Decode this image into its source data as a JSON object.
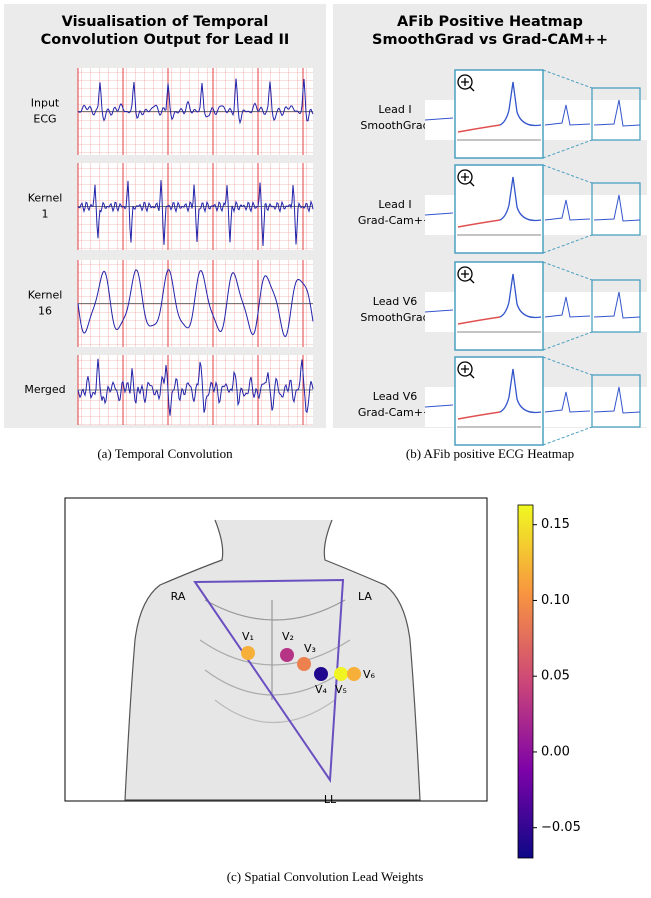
{
  "panel_a": {
    "title": [
      "Visualisation of Temporal",
      "Convolution Output for Lead II"
    ],
    "rows": [
      [
        "Input",
        "ECG"
      ],
      [
        "Kernel",
        "1"
      ],
      [
        "Kernel",
        "16"
      ],
      [
        "Merged"
      ]
    ],
    "caption": "(a) Temporal Convolution"
  },
  "panel_b": {
    "title": [
      "AFib Positive Heatmap",
      "SmoothGrad vs Grad-CAM++"
    ],
    "rows": [
      [
        "Lead I",
        "SmoothGrad"
      ],
      [
        "Lead I",
        "Grad-Cam++"
      ],
      [
        "Lead V6",
        "SmoothGrad"
      ],
      [
        "Lead V6",
        "Grad-Cam++"
      ]
    ],
    "caption": "(b) AFib positive ECG Heatmap"
  },
  "chart_data": {
    "type": "scatter",
    "caption": "(c) Spatial Convolution Lead Weights",
    "limb_labels": [
      "RA",
      "LA",
      "LL"
    ],
    "categories": [
      "V₁",
      "V₂",
      "V₃",
      "V₄",
      "V₅",
      "V₆"
    ],
    "values": [
      0.12,
      0.03,
      0.09,
      -0.06,
      0.16,
      0.12
    ],
    "colormap": "plasma",
    "ylim": [
      -0.07,
      0.163
    ],
    "yticks": [
      {
        "value": -0.05,
        "label": "−0.05"
      },
      {
        "value": 0,
        "label": "0.00"
      },
      0.05,
      {
        "value": 0.1,
        "label": "0.10"
      },
      0.15
    ]
  }
}
